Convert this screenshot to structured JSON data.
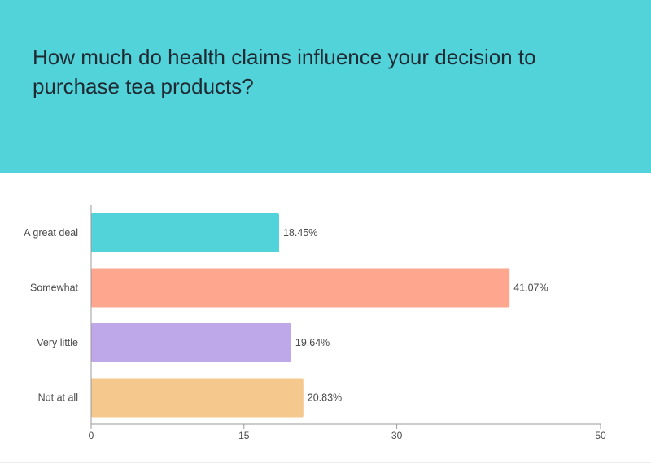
{
  "title": "How much do health claims influence your decision to purchase tea products?",
  "chart_data": {
    "type": "bar",
    "orientation": "horizontal",
    "title": "How much do health claims influence your decision to purchase tea products?",
    "xlabel": "",
    "ylabel": "",
    "categories": [
      "A great deal",
      "Somewhat",
      "Very little",
      "Not at all"
    ],
    "values": [
      18.45,
      41.07,
      19.64,
      20.83
    ],
    "value_labels": [
      "18.45%",
      "41.07%",
      "19.64%",
      "20.83%"
    ],
    "colors": [
      "#52d3da",
      "#fea78e",
      "#bea8ea",
      "#f5c88e"
    ],
    "xlim": [
      0,
      50
    ],
    "ticks": [
      0,
      15,
      30,
      50
    ],
    "tick_labels": [
      "0",
      "15",
      "30",
      "50"
    ],
    "grid": false,
    "legend": "none"
  }
}
